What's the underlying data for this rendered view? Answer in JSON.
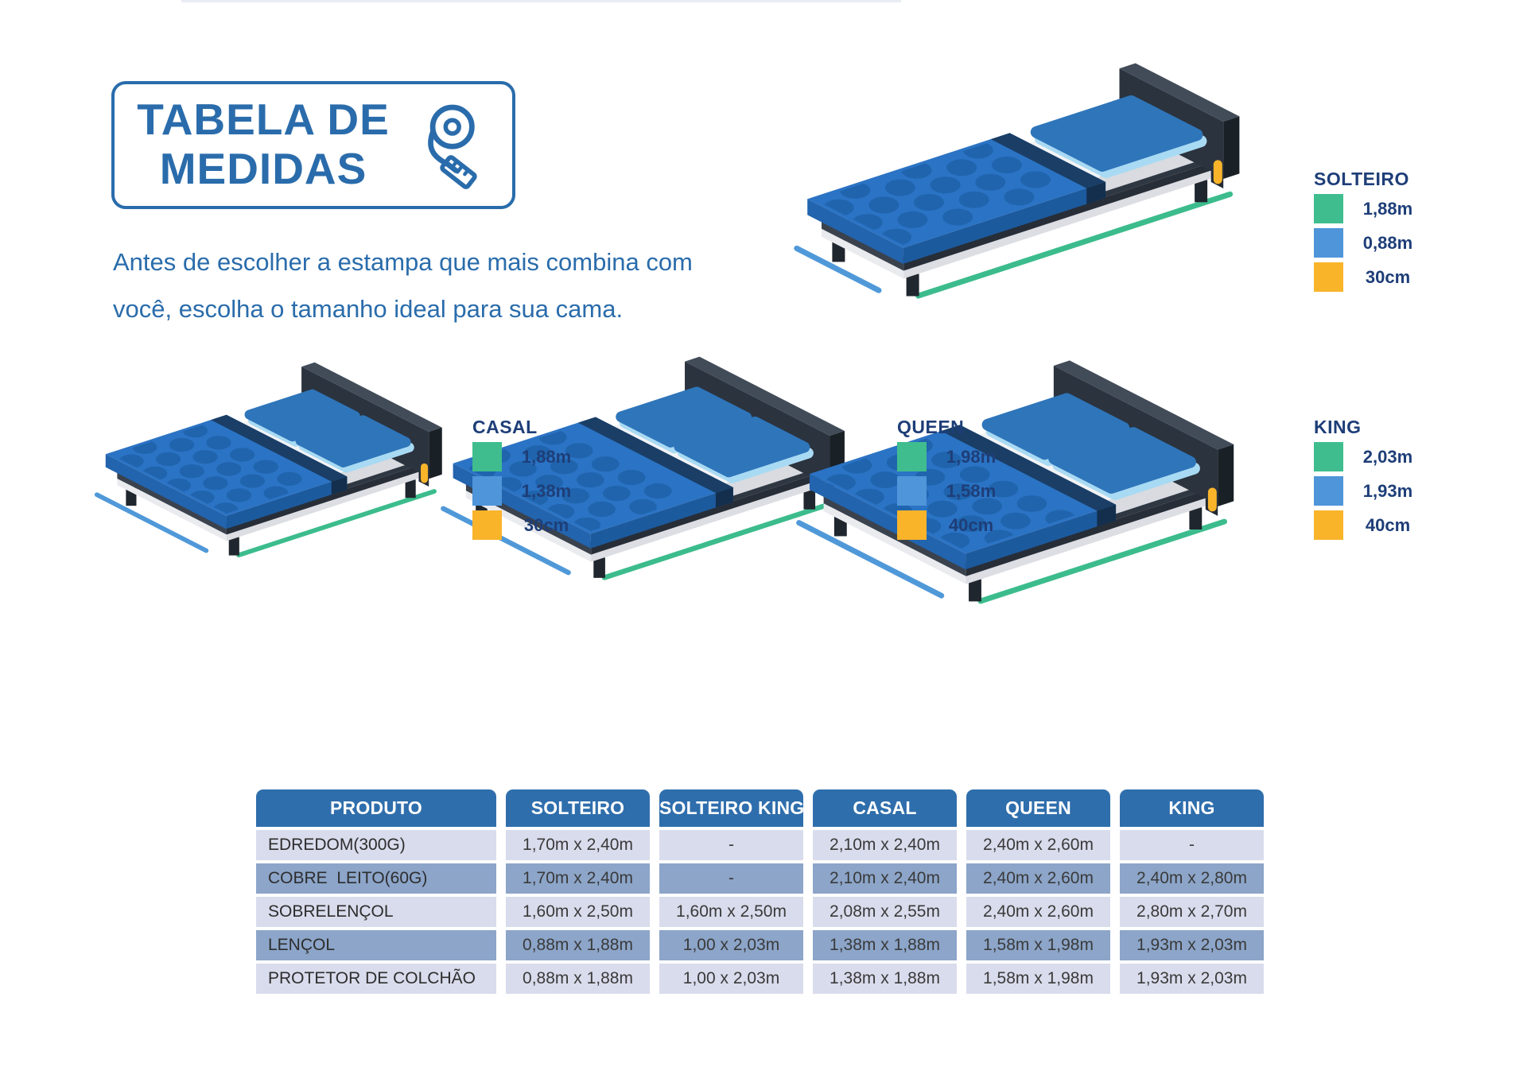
{
  "title_box": {
    "line1": "TABELA DE",
    "line2": "MEDIDAS"
  },
  "intro": {
    "line1": "Antes de escolher a estampa que mais combina com",
    "line2": "você, escolha o tamanho ideal para sua cama."
  },
  "colors": {
    "accent": "#2a6cab",
    "navy": "#1e3e78",
    "green": "#3fbd8f",
    "blue": "#4e95d9",
    "yellow": "#f9b42a",
    "table_header_bg": "#2f6eac",
    "row_light": "#d9dcec",
    "row_dark": "#8ca5c9",
    "measure_line_green": "#3cbc8d",
    "measure_line_blue": "#5099d9"
  },
  "beds": [
    {
      "name": "SOLTEIRO",
      "measures": [
        {
          "color": "green",
          "value": "1,88m"
        },
        {
          "color": "blue",
          "value": "0,88m"
        },
        {
          "color": "yellow",
          "value": "30cm"
        }
      ]
    },
    {
      "name": "CASAL",
      "measures": [
        {
          "color": "green",
          "value": "1,88m"
        },
        {
          "color": "blue",
          "value": "1,38m"
        },
        {
          "color": "yellow",
          "value": "30cm"
        }
      ]
    },
    {
      "name": "QUEEN",
      "measures": [
        {
          "color": "green",
          "value": "1,98m"
        },
        {
          "color": "blue",
          "value": "1,58m"
        },
        {
          "color": "yellow",
          "value": "40cm"
        }
      ]
    },
    {
      "name": "KING",
      "measures": [
        {
          "color": "green",
          "value": "2,03m"
        },
        {
          "color": "blue",
          "value": "1,93m"
        },
        {
          "color": "yellow",
          "value": "40cm"
        }
      ]
    }
  ],
  "table": {
    "headers": [
      "PRODUTO",
      "SOLTEIRO",
      "SOLTEIRO KING",
      "CASAL",
      "QUEEN",
      "KING"
    ],
    "rows": [
      {
        "product": "EDREDOM(300G)",
        "values": [
          "1,70m x 2,40m",
          "-",
          "2,10m x 2,40m",
          "2,40m x 2,60m",
          "-"
        ]
      },
      {
        "product": "COBRE  LEITO(60G)",
        "values": [
          "1,70m x 2,40m",
          "-",
          "2,10m x 2,40m",
          "2,40m x 2,60m",
          "2,40m x 2,80m"
        ]
      },
      {
        "product": "SOBRELENÇOL",
        "values": [
          "1,60m x 2,50m",
          "1,60m x 2,50m",
          "2,08m x 2,55m",
          "2,40m x 2,60m",
          "2,80m x 2,70m"
        ]
      },
      {
        "product": "LENÇOL",
        "values": [
          "0,88m x 1,88m",
          "1,00 x 2,03m",
          "1,38m x 1,88m",
          "1,58m x 1,98m",
          "1,93m x 2,03m"
        ]
      },
      {
        "product": "PROTETOR DE COLCHÃO",
        "values": [
          "0,88m x 1,88m",
          "1,00 x 2,03m",
          "1,38m x 1,88m",
          "1,58m x 1,98m",
          "1,93m x 2,03m"
        ]
      }
    ]
  }
}
